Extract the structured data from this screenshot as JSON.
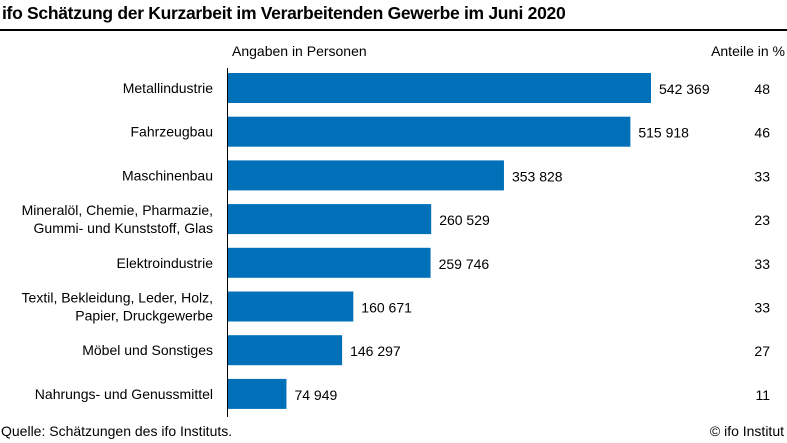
{
  "title": "ifo Schätzung der Kurzarbeit im Verarbeitenden Gewerbe im Juni 2020",
  "chart_data": {
    "type": "bar",
    "orientation": "horizontal",
    "value_header": "Angaben in Personen",
    "share_header": "Anteile in %",
    "bar_color": "#0070B8",
    "grid": false,
    "categories": [
      [
        "Metallindustrie"
      ],
      [
        "Fahrzeugbau"
      ],
      [
        "Maschinenbau"
      ],
      [
        "Mineralöl, Chemie, Pharmazie,",
        "Gummi- und Kunststoff, Glas"
      ],
      [
        "Elektroindustrie"
      ],
      [
        "Textil, Bekleidung, Leder, Holz,",
        "Papier, Druckgewerbe"
      ],
      [
        "Möbel und Sonstiges"
      ],
      [
        "Nahrungs- und Genussmittel"
      ]
    ],
    "values": [
      542369,
      515918,
      353828,
      260529,
      259746,
      160671,
      146297,
      74949
    ],
    "value_labels": [
      "542 369",
      "515 918",
      "353 828",
      "260 529",
      "259 746",
      "160 671",
      "146 297",
      "74 949"
    ],
    "shares": [
      "48",
      "46",
      "33",
      "23",
      "33",
      "33",
      "27",
      "11"
    ]
  },
  "footer": {
    "source": "Quelle: Schätzungen des ifo Instituts.",
    "copyright": "© ifo Institut"
  }
}
